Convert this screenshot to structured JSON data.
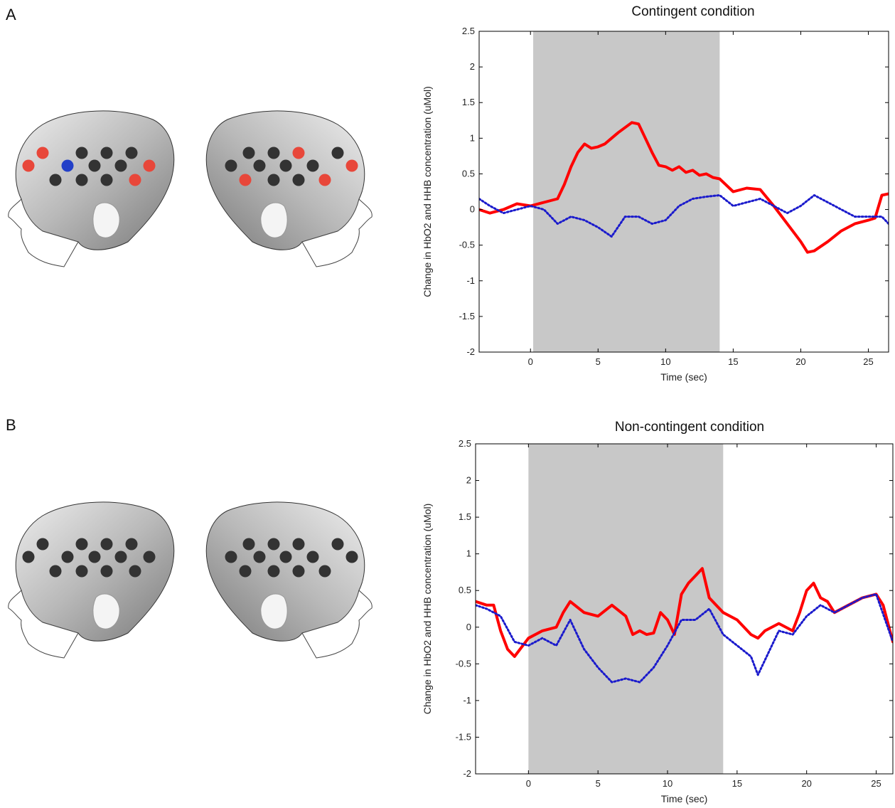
{
  "panels": [
    {
      "letter": "A"
    },
    {
      "letter": "B"
    }
  ],
  "colors": {
    "hbo2": "#ff0000",
    "hhb": "#1a1acc",
    "stim_shade": "#c8c8c8",
    "channel_inactive": "#333333",
    "channel_hbo2": "#e8473a",
    "channel_hhb": "#2340c8"
  },
  "icons": [
    "infant-head-left-icon",
    "infant-head-right-icon"
  ],
  "channel_maps": [
    {
      "left": [
        "red",
        "black",
        "black",
        "black",
        "red",
        "blue",
        "black",
        "black",
        "red",
        "black",
        "black",
        "black",
        "red"
      ],
      "right": [
        "black",
        "red",
        "black",
        "black",
        "red",
        "black",
        "black",
        "black",
        "black",
        "red",
        "black",
        "black",
        "red"
      ]
    },
    {
      "left": [
        "black",
        "black",
        "black",
        "black",
        "black",
        "black",
        "black",
        "black",
        "black",
        "black",
        "black",
        "black",
        "black"
      ],
      "right": [
        "black",
        "black",
        "black",
        "black",
        "black",
        "black",
        "black",
        "black",
        "black",
        "black",
        "black",
        "black",
        "black"
      ]
    }
  ],
  "chart_data": [
    {
      "type": "line",
      "title": "Contingent condition",
      "xlabel": "Time (sec)",
      "ylabel": "Change in HbO2 and HHB concentration (uMol)",
      "xlim": [
        -3.8,
        26.5
      ],
      "ylim": [
        -2,
        2.5
      ],
      "xticks": [
        0,
        5,
        10,
        15,
        20,
        25
      ],
      "yticks": [
        2.5,
        2,
        1.5,
        1,
        0.5,
        0,
        -0.5,
        -1,
        -1.5,
        -2
      ],
      "stimulus_window": [
        0.2,
        14.0
      ],
      "series": [
        {
          "style": "solid",
          "color": "#ff0000",
          "x": [
            -3.8,
            -3,
            -2,
            -1,
            0,
            1,
            2,
            2.5,
            3,
            3.5,
            4,
            4.5,
            5,
            5.5,
            6,
            6.5,
            7,
            7.5,
            8,
            8.5,
            9,
            9.5,
            10,
            10.5,
            11,
            11.5,
            12,
            12.5,
            13,
            13.5,
            14,
            15,
            16,
            17,
            18,
            19,
            20,
            20.5,
            21,
            22,
            23,
            24,
            25,
            25.5,
            26,
            26.5
          ],
          "y": [
            0.0,
            -0.05,
            0.0,
            0.08,
            0.05,
            0.1,
            0.15,
            0.35,
            0.6,
            0.8,
            0.92,
            0.86,
            0.88,
            0.92,
            1.0,
            1.08,
            1.15,
            1.22,
            1.2,
            1.0,
            0.8,
            0.62,
            0.6,
            0.55,
            0.6,
            0.52,
            0.55,
            0.48,
            0.5,
            0.45,
            0.43,
            0.25,
            0.3,
            0.28,
            0.05,
            -0.2,
            -0.45,
            -0.6,
            -0.58,
            -0.45,
            -0.3,
            -0.2,
            -0.15,
            -0.12,
            0.2,
            0.22
          ]
        },
        {
          "style": "dotted",
          "color": "#1a1acc",
          "x": [
            -3.8,
            -3,
            -2,
            -1,
            0,
            1,
            2,
            3,
            4,
            5,
            6,
            7,
            8,
            9,
            10,
            11,
            12,
            13,
            14,
            15,
            16,
            17,
            18,
            19,
            20,
            21,
            22,
            23,
            24,
            25,
            26,
            26.5
          ],
          "y": [
            0.15,
            0.05,
            -0.05,
            0.0,
            0.05,
            0.0,
            -0.2,
            -0.1,
            -0.15,
            -0.25,
            -0.38,
            -0.1,
            -0.1,
            -0.2,
            -0.15,
            0.05,
            0.15,
            0.18,
            0.2,
            0.05,
            0.1,
            0.15,
            0.05,
            -0.05,
            0.05,
            0.2,
            0.1,
            0.0,
            -0.1,
            -0.1,
            -0.1,
            -0.2
          ]
        }
      ]
    },
    {
      "type": "line",
      "title": "Non-contingent condition",
      "xlabel": "Time (sec)",
      "ylabel": "Change in HbO2 and HHB concentration (uMol)",
      "xlim": [
        -3.8,
        26.2
      ],
      "ylim": [
        -2,
        2.5
      ],
      "xticks": [
        0,
        5,
        10,
        15,
        20,
        25
      ],
      "yticks": [
        2.5,
        2,
        1.5,
        1,
        0.5,
        0,
        -0.5,
        -1,
        -1.5,
        -2
      ],
      "stimulus_window": [
        0.0,
        14.0
      ],
      "series": [
        {
          "style": "solid",
          "color": "#ff0000",
          "x": [
            -3.8,
            -3,
            -2.5,
            -2,
            -1.5,
            -1,
            0,
            1,
            2,
            2.5,
            3,
            4,
            5,
            6,
            7,
            7.5,
            8,
            8.5,
            9,
            9.5,
            10,
            10.5,
            11,
            11.5,
            12,
            12.5,
            13,
            14,
            15,
            16,
            16.5,
            17,
            18,
            19,
            19.5,
            20,
            20.5,
            21,
            21.5,
            22,
            23,
            24,
            25,
            25.5,
            26.2
          ],
          "y": [
            0.35,
            0.3,
            0.3,
            -0.05,
            -0.3,
            -0.4,
            -0.15,
            -0.05,
            0.0,
            0.2,
            0.35,
            0.2,
            0.15,
            0.3,
            0.15,
            -0.1,
            -0.05,
            -0.1,
            -0.08,
            0.2,
            0.1,
            -0.1,
            0.45,
            0.6,
            0.7,
            0.8,
            0.4,
            0.2,
            0.1,
            -0.1,
            -0.15,
            -0.05,
            0.05,
            -0.05,
            0.2,
            0.5,
            0.6,
            0.4,
            0.35,
            0.2,
            0.3,
            0.4,
            0.45,
            0.3,
            -0.2
          ]
        },
        {
          "style": "dotted",
          "color": "#1a1acc",
          "x": [
            -3.8,
            -3,
            -2,
            -1,
            0,
            1,
            2,
            3,
            4,
            5,
            6,
            7,
            8,
            9,
            10,
            11,
            12,
            13,
            14,
            15,
            16,
            16.5,
            17,
            18,
            19,
            20,
            21,
            22,
            23,
            24,
            25,
            26.2
          ],
          "y": [
            0.3,
            0.25,
            0.15,
            -0.2,
            -0.25,
            -0.15,
            -0.25,
            0.1,
            -0.3,
            -0.55,
            -0.75,
            -0.7,
            -0.75,
            -0.55,
            -0.25,
            0.1,
            0.1,
            0.25,
            -0.1,
            -0.25,
            -0.4,
            -0.65,
            -0.45,
            -0.05,
            -0.1,
            0.15,
            0.3,
            0.2,
            0.3,
            0.4,
            0.45,
            -0.2
          ]
        }
      ]
    }
  ]
}
